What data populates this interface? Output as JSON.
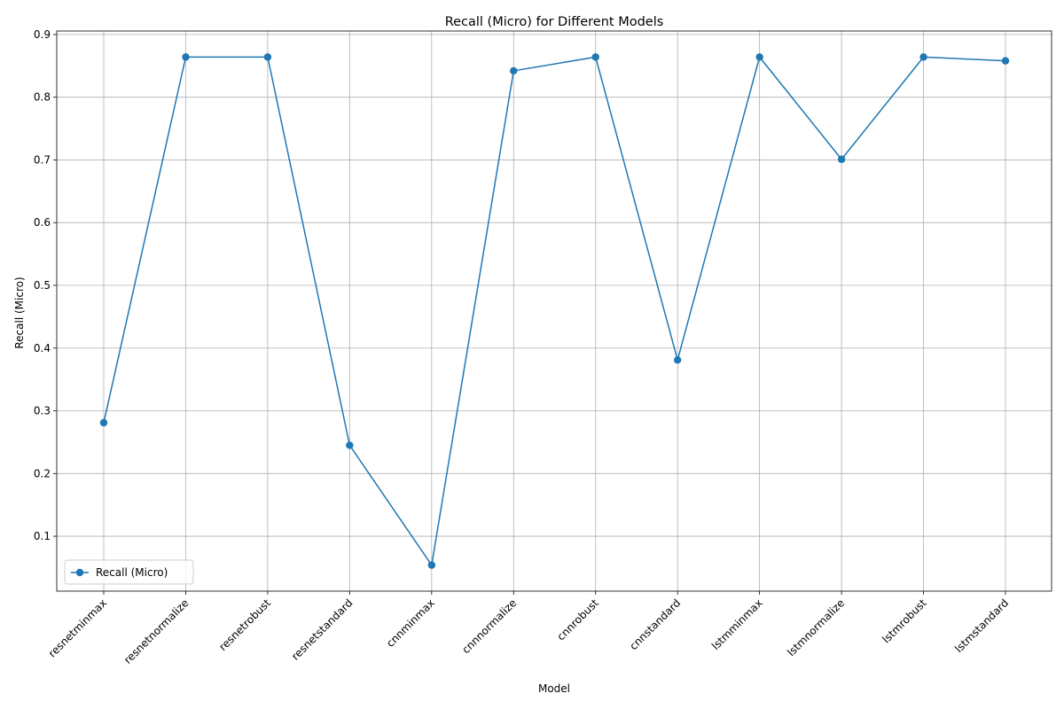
{
  "chart_data": {
    "type": "line",
    "title": "Recall (Micro) for Different Models",
    "xlabel": "Model",
    "ylabel": "Recall (Micro)",
    "categories": [
      "resnetminmax",
      "resnetnormalize",
      "resnetrobust",
      "resnetstandard",
      "cnnminmax",
      "cnnnormalize",
      "cnnrobust",
      "cnnstandard",
      "lstmminmax",
      "lstmnormalize",
      "lstmrobust",
      "lstmstandard"
    ],
    "series": [
      {
        "name": "Recall (Micro)",
        "color": "#1f77b4",
        "values": [
          0.281,
          0.864,
          0.864,
          0.245,
          0.054,
          0.842,
          0.864,
          0.381,
          0.864,
          0.701,
          0.864,
          0.858
        ]
      }
    ],
    "yticks": [
      0.1,
      0.2,
      0.3,
      0.4,
      0.5,
      0.6,
      0.7,
      0.8,
      0.9
    ],
    "ylim": [
      0.0125,
      0.9055
    ],
    "grid": true,
    "legend_position": "lower-left",
    "x_tick_rotation": 45
  }
}
